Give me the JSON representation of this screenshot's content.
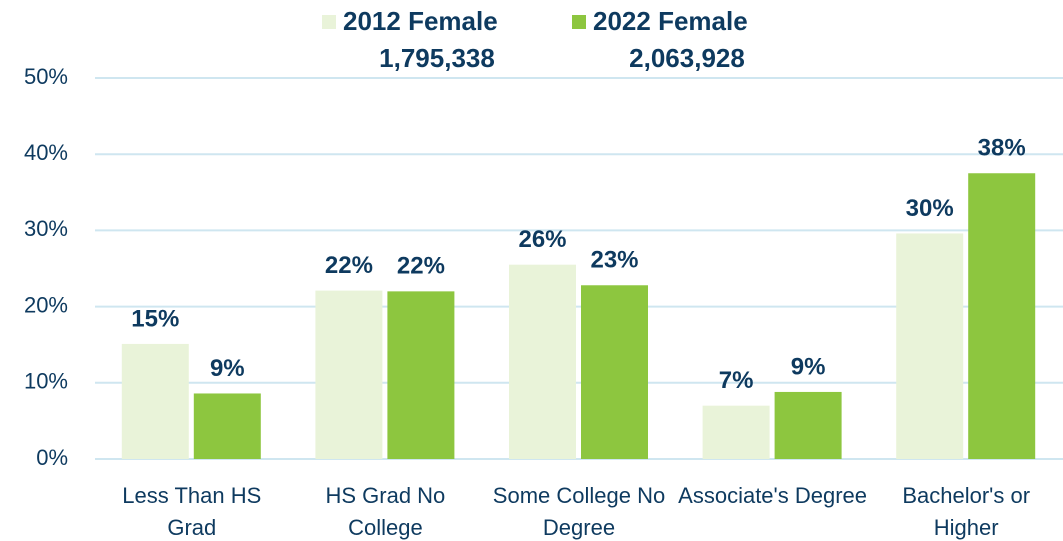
{
  "chart_data": {
    "type": "bar",
    "categories": [
      "Less Than HS Grad",
      "HS Grad No College",
      "Some College No Degree",
      "Associate's Degree",
      "Bachelor's or Higher"
    ],
    "series": [
      {
        "name": "2012 Female",
        "total_label": "1,795,338",
        "color": "#e9f3d9",
        "values": [
          15.1,
          22.1,
          25.5,
          7.0,
          29.6
        ],
        "value_labels": [
          "15%",
          "22%",
          "26%",
          "7%",
          "30%"
        ]
      },
      {
        "name": "2022 Female",
        "total_label": "2,063,928",
        "color": "#8dc63f",
        "values": [
          8.6,
          22.0,
          22.8,
          8.8,
          37.5
        ],
        "value_labels": [
          "9%",
          "22%",
          "23%",
          "9%",
          "38%"
        ]
      }
    ],
    "ylim": [
      0,
      50
    ],
    "yticks": [
      {
        "value": 0,
        "label": "0%"
      },
      {
        "value": 10,
        "label": "10%"
      },
      {
        "value": 20,
        "label": "20%"
      },
      {
        "value": 30,
        "label": "30%"
      },
      {
        "value": 40,
        "label": "40%"
      },
      {
        "value": 50,
        "label": "50%"
      }
    ],
    "grid": true
  }
}
